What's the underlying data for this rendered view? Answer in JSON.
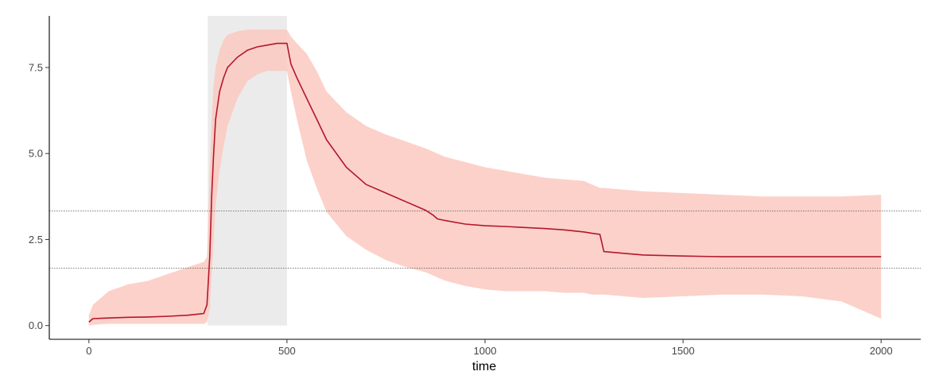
{
  "chart_data": {
    "type": "line",
    "title": "",
    "xlabel": "time",
    "ylabel": "",
    "xlim": [
      -100,
      2100
    ],
    "ylim": [
      -0.4,
      9.0
    ],
    "x_ticks": [
      0,
      500,
      1000,
      1500,
      2000
    ],
    "x_tick_labels": [
      "0",
      "500",
      "1000",
      "1500",
      "2000"
    ],
    "y_ticks": [
      0.0,
      2.5,
      5.0,
      7.5
    ],
    "y_tick_labels": [
      "0.0",
      "2.5",
      "5.0",
      "7.5"
    ],
    "grid": false,
    "legend": "none",
    "highlight_interval": {
      "x": [
        300,
        500
      ],
      "y": [
        0,
        9.0
      ],
      "color": "#ebebeb"
    },
    "reference_lines": [
      {
        "y": 3.33,
        "style": "dotted",
        "color": "#555555"
      },
      {
        "y": 1.67,
        "style": "dotted",
        "color": "#555555"
      }
    ],
    "series": [
      {
        "color": "#b2182b",
        "band_color": "#fbc9c0",
        "x": [
          0,
          10,
          50,
          100,
          150,
          200,
          250,
          290,
          298,
          305,
          310,
          315,
          320,
          330,
          340,
          350,
          375,
          400,
          425,
          450,
          475,
          500,
          510,
          525,
          550,
          575,
          600,
          650,
          700,
          750,
          800,
          850,
          870,
          880,
          900,
          950,
          1000,
          1050,
          1100,
          1150,
          1200,
          1250,
          1270,
          1290,
          1300,
          1350,
          1400,
          1500,
          1600,
          1700,
          1800,
          1900,
          2000
        ],
        "y": [
          0.1,
          0.2,
          0.22,
          0.24,
          0.25,
          0.27,
          0.3,
          0.35,
          0.6,
          2.0,
          3.8,
          5.0,
          6.0,
          6.8,
          7.2,
          7.5,
          7.8,
          8.0,
          8.1,
          8.15,
          8.2,
          8.2,
          7.6,
          7.2,
          6.6,
          6.0,
          5.4,
          4.6,
          4.1,
          3.85,
          3.6,
          3.35,
          3.2,
          3.1,
          3.05,
          2.95,
          2.9,
          2.88,
          2.85,
          2.82,
          2.78,
          2.72,
          2.68,
          2.65,
          2.15,
          2.1,
          2.05,
          2.02,
          2.0,
          2.0,
          2.0,
          2.0,
          2.0
        ],
        "lower": [
          0.0,
          0.02,
          0.05,
          0.05,
          0.05,
          0.05,
          0.05,
          0.05,
          0.1,
          0.5,
          1.5,
          2.5,
          3.5,
          4.5,
          5.2,
          5.8,
          6.6,
          7.1,
          7.3,
          7.4,
          7.4,
          7.4,
          6.8,
          6.0,
          4.8,
          4.0,
          3.3,
          2.6,
          2.2,
          1.9,
          1.7,
          1.55,
          1.45,
          1.4,
          1.3,
          1.15,
          1.05,
          1.0,
          1.0,
          1.0,
          0.95,
          0.95,
          0.9,
          0.9,
          0.9,
          0.85,
          0.8,
          0.85,
          0.9,
          0.9,
          0.85,
          0.7,
          0.2
        ],
        "upper": [
          0.3,
          0.6,
          1.0,
          1.2,
          1.3,
          1.5,
          1.7,
          1.85,
          2.0,
          4.5,
          6.0,
          7.0,
          7.5,
          8.0,
          8.3,
          8.45,
          8.55,
          8.6,
          8.6,
          8.6,
          8.6,
          8.6,
          8.4,
          8.2,
          7.9,
          7.4,
          6.8,
          6.2,
          5.8,
          5.55,
          5.35,
          5.15,
          5.05,
          5.0,
          4.9,
          4.75,
          4.6,
          4.5,
          4.4,
          4.3,
          4.25,
          4.2,
          4.1,
          4.0,
          4.0,
          3.95,
          3.9,
          3.85,
          3.8,
          3.75,
          3.75,
          3.75,
          3.8
        ]
      }
    ]
  }
}
